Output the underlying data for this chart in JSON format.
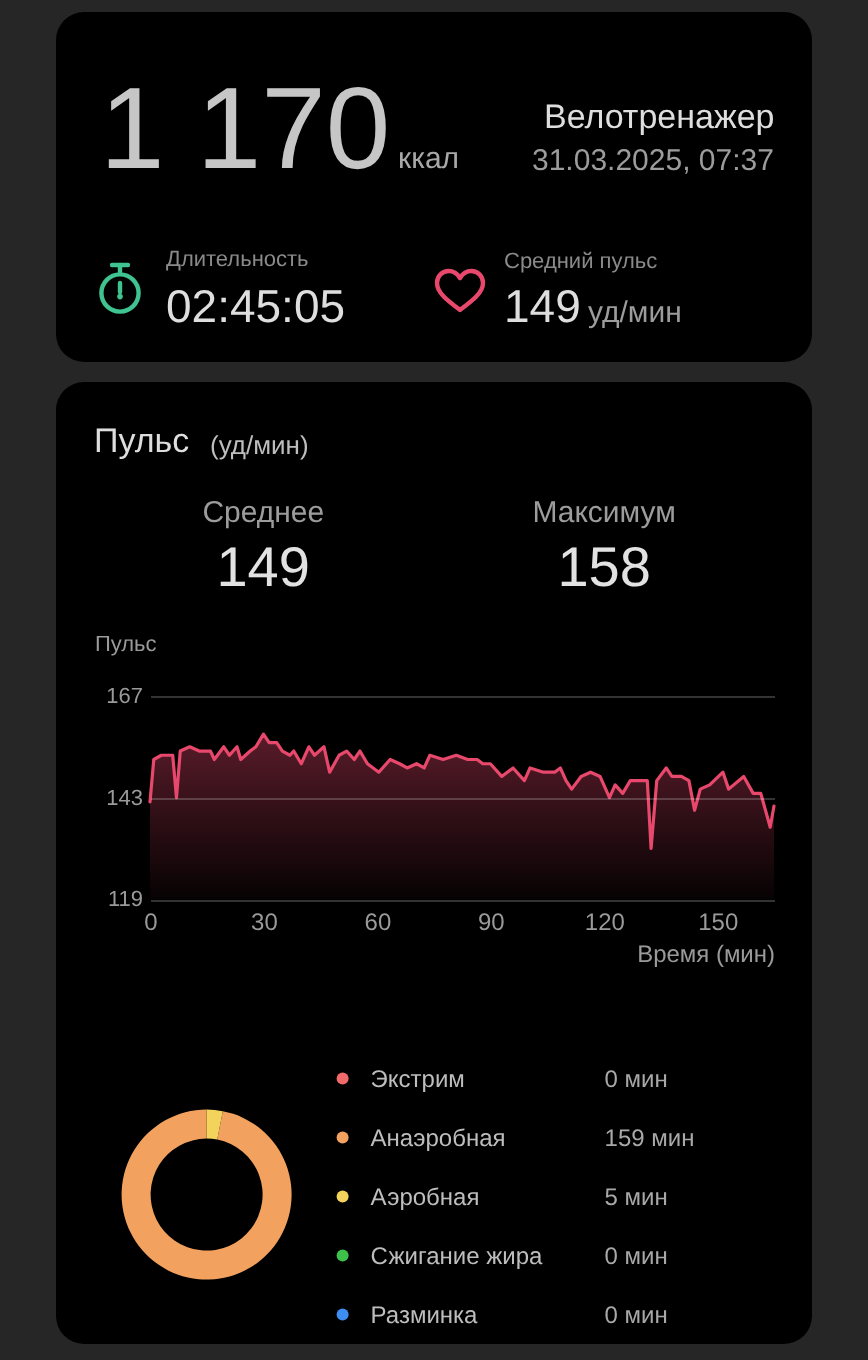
{
  "chart_data": [
    {
      "type": "other",
      "title": "Велотренажер",
      "subtitle": "31.03.2025, 07:37",
      "annotations": [
        "1 170",
        "ккал",
        "Длительность",
        "02:45:05",
        "Средний пульс",
        "149",
        "уд/мин"
      ]
    },
    {
      "type": "area",
      "title": "Пульс",
      "subtitle": "(уд/мин)",
      "annotations": [
        "Среднее",
        "149",
        "Максимум",
        "158"
      ],
      "xlabel": "Время (мин)",
      "ylabel": "Пульс",
      "x": [
        0,
        1,
        3,
        6,
        7,
        8,
        10.5,
        13,
        16,
        17,
        19.5,
        21,
        23,
        24,
        26.5,
        28,
        30,
        31.5,
        33.5,
        35,
        37,
        38,
        40,
        42,
        43.5,
        46,
        47.5,
        50,
        52,
        54,
        55.5,
        57.5,
        60.5,
        63.5,
        66,
        68,
        70.5,
        72.5,
        74,
        77.5,
        81,
        84,
        86.5,
        88,
        90,
        93,
        96,
        99,
        100.5,
        104,
        107,
        108.5,
        110,
        111.5,
        114,
        116.5,
        119,
        121.5,
        123,
        125,
        127,
        129.5,
        131.5,
        132.5,
        134,
        136.5,
        138,
        140.5,
        142.5,
        144,
        145.5,
        148,
        151.5,
        153,
        157,
        159.5,
        161.5,
        164,
        165
      ],
      "series": [
        {
          "color": "#e8486c",
          "values": [
            142,
            152,
            153,
            153,
            143,
            154,
            155,
            154,
            154,
            152,
            155,
            153,
            155,
            152,
            154,
            155,
            158,
            156,
            156,
            154,
            153,
            154,
            151,
            155,
            153,
            155,
            149,
            153,
            154,
            152,
            154,
            151,
            149,
            152,
            151,
            150,
            151,
            150,
            153,
            152,
            153,
            152,
            152,
            151,
            151,
            148,
            150,
            147,
            150,
            149,
            149,
            150,
            147,
            145,
            148,
            149,
            148,
            143,
            146,
            144,
            147,
            147,
            147,
            131,
            147,
            150,
            148,
            148,
            147,
            140,
            145,
            146,
            149,
            145,
            148,
            144,
            144,
            136,
            141
          ]
        }
      ],
      "xlim": [
        0,
        165
      ],
      "xticks": [
        0,
        30,
        60,
        90,
        120,
        150
      ],
      "ylim": [
        119,
        167
      ],
      "yticks": [
        119,
        143,
        167
      ],
      "grid": "y"
    },
    {
      "type": "donut",
      "categories": [
        "Экстрим",
        "Анаэробная",
        "Аэробная",
        "Сжигание жира",
        "Разминка"
      ],
      "values": [
        0,
        159,
        5,
        0,
        0
      ],
      "colors": [
        "#f06a6a",
        "#f2a25e",
        "#f3d35b",
        "#3dc14a",
        "#3d8ef0"
      ],
      "value_labels": [
        "0 мин",
        "159 мин",
        "5 мин",
        "0 мин",
        "0 мин"
      ],
      "legend": "right"
    }
  ]
}
